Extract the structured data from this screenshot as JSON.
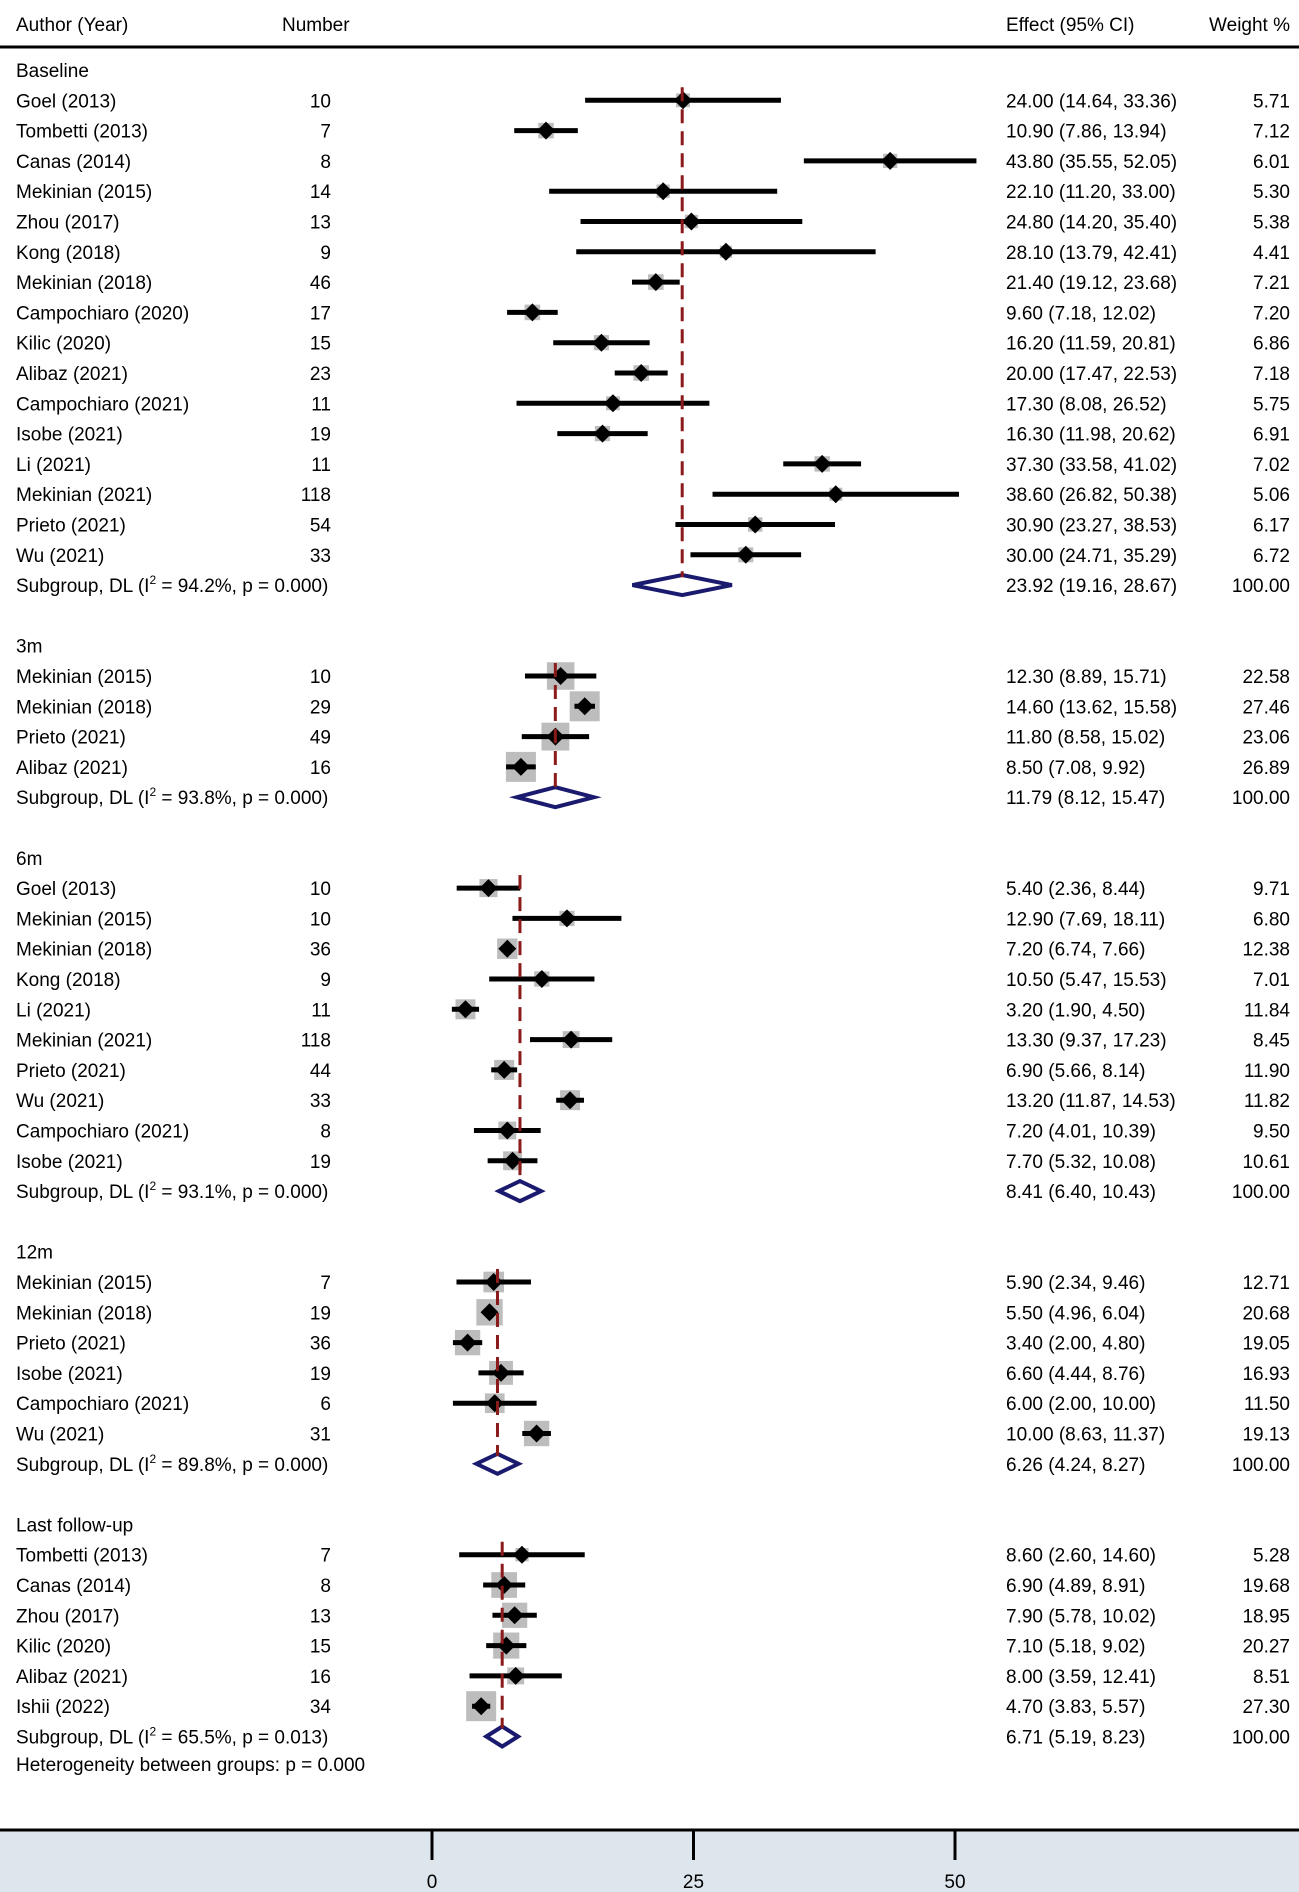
{
  "header": {
    "author_col": "Author (Year)",
    "number_col": "Number",
    "effect_col": "Effect (95% CI)",
    "weight_col": "Weight %"
  },
  "colors": {
    "ci_line": "#000000",
    "point": "#000000",
    "weight_box": "#bdbdbd",
    "diamond": "#1a1a6e",
    "overall_line": "#8b1a1a",
    "axis_band": "#dde6ec"
  },
  "chart_data": {
    "type": "forest",
    "x_axis": {
      "ticks": [
        0,
        25,
        50
      ],
      "range": [
        -6,
        83.5
      ]
    },
    "footer": "Heterogeneity between groups: p = 0.000",
    "groups": [
      {
        "name": "Baseline",
        "studies": [
          {
            "author": "Goel (2013)",
            "n": "10",
            "effect": 24.0,
            "lo": 14.64,
            "hi": 33.36,
            "effect_text": "24.00 (14.64, 33.36)",
            "weight": 5.71,
            "weight_text": "5.71"
          },
          {
            "author": "Tombetti (2013)",
            "n": "7",
            "effect": 10.9,
            "lo": 7.86,
            "hi": 13.94,
            "effect_text": "10.90 (7.86, 13.94)",
            "weight": 7.12,
            "weight_text": "7.12"
          },
          {
            "author": "Canas (2014)",
            "n": "8",
            "effect": 43.8,
            "lo": 35.55,
            "hi": 52.05,
            "effect_text": "43.80 (35.55, 52.05)",
            "weight": 6.01,
            "weight_text": "6.01"
          },
          {
            "author": "Mekinian (2015)",
            "n": "14",
            "effect": 22.1,
            "lo": 11.2,
            "hi": 33.0,
            "effect_text": "22.10 (11.20, 33.00)",
            "weight": 5.3,
            "weight_text": "5.30"
          },
          {
            "author": "Zhou (2017)",
            "n": "13",
            "effect": 24.8,
            "lo": 14.2,
            "hi": 35.4,
            "effect_text": "24.80 (14.20, 35.40)",
            "weight": 5.38,
            "weight_text": "5.38"
          },
          {
            "author": "Kong (2018)",
            "n": "9",
            "effect": 28.1,
            "lo": 13.79,
            "hi": 42.41,
            "effect_text": "28.10 (13.79, 42.41)",
            "weight": 4.41,
            "weight_text": "4.41"
          },
          {
            "author": "Mekinian (2018)",
            "n": "46",
            "effect": 21.4,
            "lo": 19.12,
            "hi": 23.68,
            "effect_text": "21.40 (19.12, 23.68)",
            "weight": 7.21,
            "weight_text": "7.21"
          },
          {
            "author": "Campochiaro (2020)",
            "n": "17",
            "effect": 9.6,
            "lo": 7.18,
            "hi": 12.02,
            "effect_text": "9.60 (7.18, 12.02)",
            "weight": 7.2,
            "weight_text": "7.20"
          },
          {
            "author": "Kilic (2020)",
            "n": "15",
            "effect": 16.2,
            "lo": 11.59,
            "hi": 20.81,
            "effect_text": "16.20 (11.59, 20.81)",
            "weight": 6.86,
            "weight_text": "6.86"
          },
          {
            "author": "Alibaz (2021)",
            "n": "23",
            "effect": 20.0,
            "lo": 17.47,
            "hi": 22.53,
            "effect_text": "20.00 (17.47, 22.53)",
            "weight": 7.18,
            "weight_text": "7.18"
          },
          {
            "author": "Campochiaro (2021)",
            "n": "11",
            "effect": 17.3,
            "lo": 8.08,
            "hi": 26.52,
            "effect_text": "17.30 (8.08, 26.52)",
            "weight": 5.75,
            "weight_text": "5.75"
          },
          {
            "author": "Isobe (2021)",
            "n": "19",
            "effect": 16.3,
            "lo": 11.98,
            "hi": 20.62,
            "effect_text": "16.30 (11.98, 20.62)",
            "weight": 6.91,
            "weight_text": "6.91"
          },
          {
            "author": "Li (2021)",
            "n": "11",
            "effect": 37.3,
            "lo": 33.58,
            "hi": 41.02,
            "effect_text": "37.30 (33.58, 41.02)",
            "weight": 7.02,
            "weight_text": "7.02"
          },
          {
            "author": "Mekinian (2021)",
            "n": "118",
            "effect": 38.6,
            "lo": 26.82,
            "hi": 50.38,
            "effect_text": "38.60 (26.82, 50.38)",
            "weight": 5.06,
            "weight_text": "5.06"
          },
          {
            "author": "Prieto (2021)",
            "n": "54",
            "effect": 30.9,
            "lo": 23.27,
            "hi": 38.53,
            "effect_text": "30.90 (23.27, 38.53)",
            "weight": 6.17,
            "weight_text": "6.17"
          },
          {
            "author": "Wu (2021)",
            "n": "33",
            "effect": 30.0,
            "lo": 24.71,
            "hi": 35.29,
            "effect_text": "30.00 (24.71, 35.29)",
            "weight": 6.72,
            "weight_text": "6.72"
          }
        ],
        "subgroup": {
          "label_pre": "Subgroup, DL (I",
          "sup": "2",
          "label_post": " = 94.2%, p = 0.000)",
          "effect": 23.92,
          "lo": 19.16,
          "hi": 28.67,
          "effect_text": "23.92 (19.16, 28.67)",
          "weight_text": "100.00"
        }
      },
      {
        "name": "3m",
        "studies": [
          {
            "author": "Mekinian (2015)",
            "n": "10",
            "effect": 12.3,
            "lo": 8.89,
            "hi": 15.71,
            "effect_text": "12.30 (8.89, 15.71)",
            "weight": 22.58,
            "weight_text": "22.58"
          },
          {
            "author": "Mekinian (2018)",
            "n": "29",
            "effect": 14.6,
            "lo": 13.62,
            "hi": 15.58,
            "effect_text": "14.60 (13.62, 15.58)",
            "weight": 27.46,
            "weight_text": "27.46"
          },
          {
            "author": "Prieto (2021)",
            "n": "49",
            "effect": 11.8,
            "lo": 8.58,
            "hi": 15.02,
            "effect_text": "11.80 (8.58, 15.02)",
            "weight": 23.06,
            "weight_text": "23.06"
          },
          {
            "author": "Alibaz (2021)",
            "n": "16",
            "effect": 8.5,
            "lo": 7.08,
            "hi": 9.92,
            "effect_text": "8.50 (7.08, 9.92)",
            "weight": 26.89,
            "weight_text": "26.89"
          }
        ],
        "subgroup": {
          "label_pre": "Subgroup, DL (I",
          "sup": "2",
          "label_post": " = 93.8%, p = 0.000)",
          "effect": 11.79,
          "lo": 8.12,
          "hi": 15.47,
          "effect_text": "11.79 (8.12, 15.47)",
          "weight_text": "100.00"
        }
      },
      {
        "name": "6m",
        "studies": [
          {
            "author": "Goel (2013)",
            "n": "10",
            "effect": 5.4,
            "lo": 2.36,
            "hi": 8.44,
            "effect_text": "5.40 (2.36, 8.44)",
            "weight": 9.71,
            "weight_text": "9.71"
          },
          {
            "author": "Mekinian (2015)",
            "n": "10",
            "effect": 12.9,
            "lo": 7.69,
            "hi": 18.11,
            "effect_text": "12.90 (7.69, 18.11)",
            "weight": 6.8,
            "weight_text": "6.80"
          },
          {
            "author": "Mekinian (2018)",
            "n": "36",
            "effect": 7.2,
            "lo": 6.74,
            "hi": 7.66,
            "effect_text": "7.20 (6.74, 7.66)",
            "weight": 12.38,
            "weight_text": "12.38"
          },
          {
            "author": "Kong (2018)",
            "n": "9",
            "effect": 10.5,
            "lo": 5.47,
            "hi": 15.53,
            "effect_text": "10.50 (5.47, 15.53)",
            "weight": 7.01,
            "weight_text": "7.01"
          },
          {
            "author": "Li (2021)",
            "n": "11",
            "effect": 3.2,
            "lo": 1.9,
            "hi": 4.5,
            "effect_text": "3.20 (1.90, 4.50)",
            "weight": 11.84,
            "weight_text": "11.84"
          },
          {
            "author": "Mekinian (2021)",
            "n": "118",
            "effect": 13.3,
            "lo": 9.37,
            "hi": 17.23,
            "effect_text": "13.30 (9.37, 17.23)",
            "weight": 8.45,
            "weight_text": "8.45"
          },
          {
            "author": "Prieto (2021)",
            "n": "44",
            "effect": 6.9,
            "lo": 5.66,
            "hi": 8.14,
            "effect_text": "6.90 (5.66, 8.14)",
            "weight": 11.9,
            "weight_text": "11.90"
          },
          {
            "author": "Wu (2021)",
            "n": "33",
            "effect": 13.2,
            "lo": 11.87,
            "hi": 14.53,
            "effect_text": "13.20 (11.87, 14.53)",
            "weight": 11.82,
            "weight_text": "11.82"
          },
          {
            "author": "Campochiaro (2021)",
            "n": "8",
            "effect": 7.2,
            "lo": 4.01,
            "hi": 10.39,
            "effect_text": "7.20 (4.01, 10.39)",
            "weight": 9.5,
            "weight_text": "9.50"
          },
          {
            "author": "Isobe (2021)",
            "n": "19",
            "effect": 7.7,
            "lo": 5.32,
            "hi": 10.08,
            "effect_text": "7.70 (5.32, 10.08)",
            "weight": 10.61,
            "weight_text": "10.61"
          }
        ],
        "subgroup": {
          "label_pre": "Subgroup, DL (I",
          "sup": "2",
          "label_post": " = 93.1%, p = 0.000)",
          "effect": 8.41,
          "lo": 6.4,
          "hi": 10.43,
          "effect_text": "8.41 (6.40, 10.43)",
          "weight_text": "100.00"
        }
      },
      {
        "name": "12m",
        "studies": [
          {
            "author": "Mekinian (2015)",
            "n": "7",
            "effect": 5.9,
            "lo": 2.34,
            "hi": 9.46,
            "effect_text": "5.90 (2.34, 9.46)",
            "weight": 12.71,
            "weight_text": "12.71"
          },
          {
            "author": "Mekinian (2018)",
            "n": "19",
            "effect": 5.5,
            "lo": 4.96,
            "hi": 6.04,
            "effect_text": "5.50 (4.96, 6.04)",
            "weight": 20.68,
            "weight_text": "20.68"
          },
          {
            "author": "Prieto (2021)",
            "n": "36",
            "effect": 3.4,
            "lo": 2.0,
            "hi": 4.8,
            "effect_text": "3.40 (2.00, 4.80)",
            "weight": 19.05,
            "weight_text": "19.05"
          },
          {
            "author": "Isobe (2021)",
            "n": "19",
            "effect": 6.6,
            "lo": 4.44,
            "hi": 8.76,
            "effect_text": "6.60 (4.44, 8.76)",
            "weight": 16.93,
            "weight_text": "16.93"
          },
          {
            "author": "Campochiaro (2021)",
            "n": "6",
            "effect": 6.0,
            "lo": 2.0,
            "hi": 10.0,
            "effect_text": "6.00 (2.00, 10.00)",
            "weight": 11.5,
            "weight_text": "11.50"
          },
          {
            "author": "Wu (2021)",
            "n": "31",
            "effect": 10.0,
            "lo": 8.63,
            "hi": 11.37,
            "effect_text": "10.00 (8.63, 11.37)",
            "weight": 19.13,
            "weight_text": "19.13"
          }
        ],
        "subgroup": {
          "label_pre": "Subgroup, DL (I",
          "sup": "2",
          "label_post": " = 89.8%, p = 0.000)",
          "effect": 6.26,
          "lo": 4.24,
          "hi": 8.27,
          "effect_text": "6.26 (4.24, 8.27)",
          "weight_text": "100.00"
        }
      },
      {
        "name": "Last follow-up",
        "studies": [
          {
            "author": "Tombetti (2013)",
            "n": "7",
            "effect": 8.6,
            "lo": 2.6,
            "hi": 14.6,
            "effect_text": "8.60 (2.60, 14.60)",
            "weight": 5.28,
            "weight_text": "5.28"
          },
          {
            "author": "Canas (2014)",
            "n": "8",
            "effect": 6.9,
            "lo": 4.89,
            "hi": 8.91,
            "effect_text": "6.90 (4.89, 8.91)",
            "weight": 19.68,
            "weight_text": "19.68"
          },
          {
            "author": "Zhou (2017)",
            "n": "13",
            "effect": 7.9,
            "lo": 5.78,
            "hi": 10.02,
            "effect_text": "7.90 (5.78, 10.02)",
            "weight": 18.95,
            "weight_text": "18.95"
          },
          {
            "author": "Kilic (2020)",
            "n": "15",
            "effect": 7.1,
            "lo": 5.18,
            "hi": 9.02,
            "effect_text": "7.10 (5.18, 9.02)",
            "weight": 20.27,
            "weight_text": "20.27"
          },
          {
            "author": "Alibaz (2021)",
            "n": "16",
            "effect": 8.0,
            "lo": 3.59,
            "hi": 12.41,
            "effect_text": "8.00 (3.59, 12.41)",
            "weight": 8.51,
            "weight_text": "8.51"
          },
          {
            "author": "Ishii (2022)",
            "n": "34",
            "effect": 4.7,
            "lo": 3.83,
            "hi": 5.57,
            "effect_text": "4.70 (3.83, 5.57)",
            "weight": 27.3,
            "weight_text": "27.30"
          }
        ],
        "subgroup": {
          "label_pre": "Subgroup, DL (I",
          "sup": "2",
          "label_post": " = 65.5%, p = 0.013)",
          "effect": 6.71,
          "lo": 5.19,
          "hi": 8.23,
          "effect_text": "6.71 (5.19, 8.23)",
          "weight_text": "100.00"
        }
      }
    ]
  }
}
